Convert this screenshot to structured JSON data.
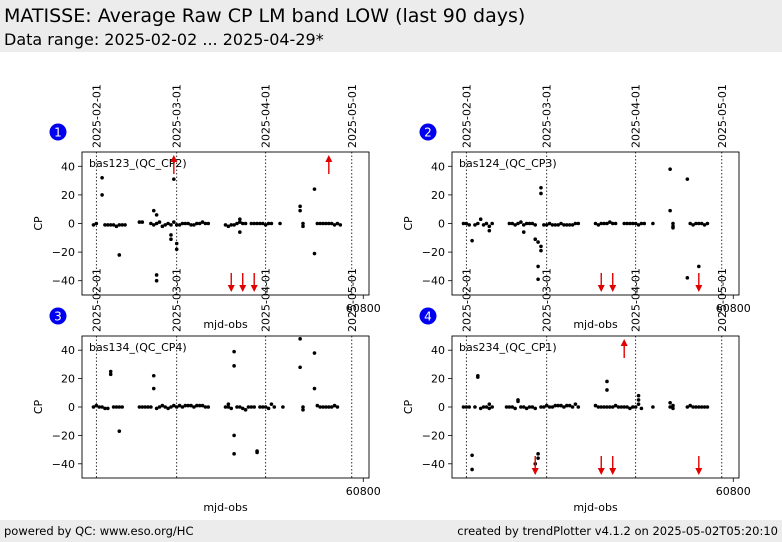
{
  "header": {
    "title": "MATISSE: Average Raw CP LM band LOW (last 90 days)",
    "subtitle": "Data range: 2025-02-02 ... 2025-04-29*"
  },
  "footer": {
    "left": "powered by QC: www.eso.org/HC",
    "right": "created by trendPlotter v4.1.2 on 2025-05-02T05:20:10"
  },
  "colors": {
    "points": "#000000",
    "outlier_arrows": "#e00000",
    "badge": "#0000ee",
    "header_bg": "#ececec"
  },
  "chart_data": [
    {
      "type": "scatter",
      "panel": "1",
      "label": "bas123_(QC_CP2)",
      "xlabel": "mjd-obs",
      "ylabel": "CP",
      "xlim": [
        60702,
        60802
      ],
      "ylim": [
        -50,
        50
      ],
      "xticks": [
        60800
      ],
      "yticks": [
        -40,
        -20,
        0,
        20,
        40
      ],
      "date_lines": [
        {
          "x": 60707,
          "label": "2025-02-01"
        },
        {
          "x": 60735,
          "label": "2025-03-01"
        },
        {
          "x": 60766,
          "label": "2025-04-01"
        },
        {
          "x": 60796,
          "label": "2025-05-01"
        }
      ],
      "points": [
        [
          60706,
          -1
        ],
        [
          60707,
          0
        ],
        [
          60709,
          32
        ],
        [
          60709,
          20
        ],
        [
          60710,
          -1
        ],
        [
          60711,
          -1
        ],
        [
          60712,
          -1
        ],
        [
          60713,
          -1
        ],
        [
          60714,
          -2
        ],
        [
          60715,
          -1
        ],
        [
          60715,
          -22
        ],
        [
          60716,
          -1
        ],
        [
          60717,
          -1
        ],
        [
          60722,
          1
        ],
        [
          60723,
          1
        ],
        [
          60726,
          0
        ],
        [
          60727,
          -1
        ],
        [
          60727,
          9
        ],
        [
          60728,
          6
        ],
        [
          60728,
          0
        ],
        [
          60728,
          -36
        ],
        [
          60728,
          -40
        ],
        [
          60729,
          1
        ],
        [
          60730,
          -2
        ],
        [
          60731,
          -1
        ],
        [
          60732,
          0
        ],
        [
          60733,
          -1
        ],
        [
          60733,
          -8
        ],
        [
          60733,
          -11
        ],
        [
          60734,
          1
        ],
        [
          60734,
          44
        ],
        [
          60734,
          31
        ],
        [
          60735,
          -1
        ],
        [
          60735,
          -14
        ],
        [
          60735,
          -18
        ],
        [
          60736,
          -1
        ],
        [
          60737,
          0
        ],
        [
          60738,
          0
        ],
        [
          60739,
          0
        ],
        [
          60740,
          -1
        ],
        [
          60741,
          -1
        ],
        [
          60742,
          0
        ],
        [
          60743,
          0
        ],
        [
          60744,
          1
        ],
        [
          60745,
          0
        ],
        [
          60746,
          0
        ],
        [
          60752,
          -1
        ],
        [
          60753,
          -2
        ],
        [
          60754,
          -1
        ],
        [
          60755,
          -1
        ],
        [
          60756,
          0
        ],
        [
          60757,
          1
        ],
        [
          60757,
          3
        ],
        [
          60757,
          -6
        ],
        [
          60758,
          0
        ],
        [
          60759,
          0
        ],
        [
          60761,
          0
        ],
        [
          60762,
          0
        ],
        [
          60763,
          0
        ],
        [
          60764,
          0
        ],
        [
          60765,
          0
        ],
        [
          60766,
          -1
        ],
        [
          60767,
          0
        ],
        [
          60768,
          0
        ],
        [
          60771,
          0
        ],
        [
          60778,
          9
        ],
        [
          60778,
          12
        ],
        [
          60779,
          0
        ],
        [
          60779,
          -2
        ],
        [
          60783,
          -21
        ],
        [
          60783,
          24
        ],
        [
          60784,
          0
        ],
        [
          60785,
          0
        ],
        [
          60786,
          0
        ],
        [
          60787,
          0
        ],
        [
          60788,
          0
        ],
        [
          60789,
          0
        ],
        [
          60790,
          -1
        ],
        [
          60791,
          0
        ],
        [
          60792,
          -1
        ]
      ],
      "outliers": [
        {
          "x": 60734,
          "dir": "up"
        },
        {
          "x": 60788,
          "dir": "up"
        },
        {
          "x": 60754,
          "dir": "down"
        },
        {
          "x": 60758,
          "dir": "down"
        },
        {
          "x": 60762,
          "dir": "down"
        }
      ]
    },
    {
      "type": "scatter",
      "panel": "2",
      "label": "bas124_(QC_CP3)",
      "xlabel": "mjd-obs",
      "ylabel": "CP",
      "xlim": [
        60702,
        60802
      ],
      "ylim": [
        -50,
        50
      ],
      "xticks": [
        60800
      ],
      "yticks": [
        -40,
        -20,
        0,
        20,
        40
      ],
      "date_lines": [
        {
          "x": 60707,
          "label": "2025-02-01"
        },
        {
          "x": 60735,
          "label": "2025-03-01"
        },
        {
          "x": 60766,
          "label": "2025-04-01"
        },
        {
          "x": 60796,
          "label": "2025-05-01"
        }
      ],
      "points": [
        [
          60706,
          0
        ],
        [
          60707,
          0
        ],
        [
          60708,
          -1
        ],
        [
          60709,
          -12
        ],
        [
          60710,
          -1
        ],
        [
          60711,
          0
        ],
        [
          60712,
          3
        ],
        [
          60713,
          -1
        ],
        [
          60714,
          0
        ],
        [
          60715,
          -2
        ],
        [
          60715,
          -5
        ],
        [
          60716,
          0
        ],
        [
          60722,
          0
        ],
        [
          60723,
          0
        ],
        [
          60724,
          -1
        ],
        [
          60725,
          0
        ],
        [
          60726,
          1
        ],
        [
          60727,
          -1
        ],
        [
          60727,
          -6
        ],
        [
          60728,
          0
        ],
        [
          60729,
          0
        ],
        [
          60730,
          0
        ],
        [
          60731,
          -1
        ],
        [
          60731,
          -11
        ],
        [
          60732,
          -13
        ],
        [
          60732,
          -30
        ],
        [
          60732,
          -39
        ],
        [
          60733,
          25
        ],
        [
          60733,
          21
        ],
        [
          60733,
          -16
        ],
        [
          60733,
          -19
        ],
        [
          60734,
          -1
        ],
        [
          60735,
          -1
        ],
        [
          60736,
          0
        ],
        [
          60737,
          -1
        ],
        [
          60738,
          -1
        ],
        [
          60739,
          -1
        ],
        [
          60740,
          0
        ],
        [
          60741,
          -1
        ],
        [
          60742,
          -1
        ],
        [
          60743,
          -1
        ],
        [
          60744,
          -1
        ],
        [
          60745,
          0
        ],
        [
          60746,
          0
        ],
        [
          60752,
          0
        ],
        [
          60753,
          -1
        ],
        [
          60754,
          0
        ],
        [
          60755,
          0
        ],
        [
          60756,
          0
        ],
        [
          60757,
          1
        ],
        [
          60758,
          0
        ],
        [
          60759,
          0
        ],
        [
          60762,
          0
        ],
        [
          60763,
          0
        ],
        [
          60764,
          0
        ],
        [
          60765,
          0
        ],
        [
          60766,
          0
        ],
        [
          60767,
          -1
        ],
        [
          60768,
          0
        ],
        [
          60769,
          0
        ],
        [
          60772,
          0
        ],
        [
          60778,
          38
        ],
        [
          60778,
          9
        ],
        [
          60779,
          0
        ],
        [
          60779,
          -2
        ],
        [
          60779,
          -3
        ],
        [
          60784,
          31
        ],
        [
          60784,
          -38
        ],
        [
          60785,
          0
        ],
        [
          60786,
          -1
        ],
        [
          60787,
          0
        ],
        [
          60788,
          -30
        ],
        [
          60788,
          0
        ],
        [
          60789,
          0
        ],
        [
          60790,
          -1
        ],
        [
          60791,
          0
        ]
      ],
      "outliers": [
        {
          "x": 60754,
          "dir": "down"
        },
        {
          "x": 60758,
          "dir": "down"
        },
        {
          "x": 60788,
          "dir": "down"
        }
      ]
    },
    {
      "type": "scatter",
      "panel": "3",
      "label": "bas134_(QC_CP4)",
      "xlabel": "mjd-obs",
      "ylabel": "CP",
      "xlim": [
        60702,
        60802
      ],
      "ylim": [
        -50,
        50
      ],
      "xticks": [
        60800
      ],
      "yticks": [
        -40,
        -20,
        0,
        20,
        40
      ],
      "date_lines": [
        {
          "x": 60707,
          "label": "2025-02-01"
        },
        {
          "x": 60735,
          "label": "2025-03-01"
        },
        {
          "x": 60766,
          "label": "2025-04-01"
        },
        {
          "x": 60796,
          "label": "2025-05-01"
        }
      ],
      "points": [
        [
          60706,
          0
        ],
        [
          60707,
          1
        ],
        [
          60708,
          0
        ],
        [
          60709,
          0
        ],
        [
          60710,
          -1
        ],
        [
          60711,
          -1
        ],
        [
          60712,
          25
        ],
        [
          60712,
          23
        ],
        [
          60713,
          0
        ],
        [
          60714,
          0
        ],
        [
          60715,
          0
        ],
        [
          60715,
          -17
        ],
        [
          60716,
          0
        ],
        [
          60722,
          0
        ],
        [
          60723,
          0
        ],
        [
          60724,
          0
        ],
        [
          60725,
          0
        ],
        [
          60726,
          0
        ],
        [
          60727,
          13
        ],
        [
          60727,
          22
        ],
        [
          60728,
          -1
        ],
        [
          60729,
          0
        ],
        [
          60730,
          1
        ],
        [
          60731,
          0
        ],
        [
          60732,
          -1
        ],
        [
          60733,
          0
        ],
        [
          60734,
          1
        ],
        [
          60735,
          0
        ],
        [
          60736,
          1
        ],
        [
          60737,
          0
        ],
        [
          60738,
          1
        ],
        [
          60739,
          1
        ],
        [
          60740,
          1
        ],
        [
          60741,
          0
        ],
        [
          60742,
          1
        ],
        [
          60743,
          1
        ],
        [
          60744,
          1
        ],
        [
          60745,
          0
        ],
        [
          60746,
          0
        ],
        [
          60752,
          0
        ],
        [
          60753,
          2
        ],
        [
          60753,
          0
        ],
        [
          60754,
          -1
        ],
        [
          60755,
          -20
        ],
        [
          60755,
          -33
        ],
        [
          60755,
          39
        ],
        [
          60755,
          29
        ],
        [
          60756,
          0
        ],
        [
          60757,
          0
        ],
        [
          60758,
          -1
        ],
        [
          60759,
          -2
        ],
        [
          60760,
          0
        ],
        [
          60761,
          0
        ],
        [
          60762,
          0
        ],
        [
          60763,
          -31
        ],
        [
          60763,
          -32
        ],
        [
          60764,
          0
        ],
        [
          60765,
          0
        ],
        [
          60766,
          0
        ],
        [
          60767,
          -1
        ],
        [
          60768,
          2
        ],
        [
          60769,
          0
        ],
        [
          60772,
          0
        ],
        [
          60778,
          48
        ],
        [
          60778,
          28
        ],
        [
          60779,
          0
        ],
        [
          60779,
          -2
        ],
        [
          60783,
          38
        ],
        [
          60783,
          13
        ],
        [
          60784,
          1
        ],
        [
          60785,
          0
        ],
        [
          60786,
          0
        ],
        [
          60787,
          0
        ],
        [
          60788,
          0
        ],
        [
          60789,
          0
        ],
        [
          60790,
          1
        ],
        [
          60791,
          0
        ]
      ],
      "outliers": []
    },
    {
      "type": "scatter",
      "panel": "4",
      "label": "bas234_(QC_CP1)",
      "xlabel": "mjd-obs",
      "ylabel": "CP",
      "xlim": [
        60702,
        60802
      ],
      "ylim": [
        -50,
        50
      ],
      "xticks": [
        60800
      ],
      "yticks": [
        -40,
        -20,
        0,
        20,
        40
      ],
      "date_lines": [
        {
          "x": 60707,
          "label": "2025-02-01"
        },
        {
          "x": 60735,
          "label": "2025-03-01"
        },
        {
          "x": 60766,
          "label": "2025-04-01"
        },
        {
          "x": 60796,
          "label": "2025-05-01"
        }
      ],
      "points": [
        [
          60706,
          0
        ],
        [
          60707,
          0
        ],
        [
          60708,
          0
        ],
        [
          60709,
          -34
        ],
        [
          60709,
          -44
        ],
        [
          60710,
          0
        ],
        [
          60711,
          22
        ],
        [
          60711,
          21
        ],
        [
          60712,
          -1
        ],
        [
          60713,
          0
        ],
        [
          60714,
          0
        ],
        [
          60715,
          -1
        ],
        [
          60715,
          2
        ],
        [
          60716,
          0
        ],
        [
          60721,
          0
        ],
        [
          60722,
          0
        ],
        [
          60723,
          0
        ],
        [
          60724,
          -1
        ],
        [
          60725,
          5
        ],
        [
          60725,
          4
        ],
        [
          60726,
          0
        ],
        [
          60727,
          0
        ],
        [
          60728,
          -1
        ],
        [
          60729,
          0
        ],
        [
          60730,
          0
        ],
        [
          60731,
          -1
        ],
        [
          60731,
          -40
        ],
        [
          60732,
          -33
        ],
        [
          60732,
          -36
        ],
        [
          60733,
          0
        ],
        [
          60734,
          0
        ],
        [
          60735,
          1
        ],
        [
          60736,
          0
        ],
        [
          60737,
          0
        ],
        [
          60738,
          1
        ],
        [
          60739,
          1
        ],
        [
          60740,
          1
        ],
        [
          60741,
          0
        ],
        [
          60742,
          1
        ],
        [
          60743,
          1
        ],
        [
          60744,
          0
        ],
        [
          60745,
          2
        ],
        [
          60746,
          0
        ],
        [
          60752,
          1
        ],
        [
          60753,
          0
        ],
        [
          60754,
          0
        ],
        [
          60755,
          0
        ],
        [
          60756,
          18
        ],
        [
          60756,
          12
        ],
        [
          60756,
          0
        ],
        [
          60757,
          0
        ],
        [
          60758,
          0
        ],
        [
          60759,
          1
        ],
        [
          60760,
          0
        ],
        [
          60761,
          0
        ],
        [
          60762,
          0
        ],
        [
          60763,
          0
        ],
        [
          60764,
          -1
        ],
        [
          60765,
          0
        ],
        [
          60766,
          0
        ],
        [
          60767,
          8
        ],
        [
          60767,
          5
        ],
        [
          60767,
          2
        ],
        [
          60768,
          -1
        ],
        [
          60772,
          0
        ],
        [
          60778,
          3
        ],
        [
          60778,
          0
        ],
        [
          60779,
          1
        ],
        [
          60779,
          -1
        ],
        [
          60784,
          0
        ],
        [
          60785,
          1
        ],
        [
          60786,
          0
        ],
        [
          60787,
          0
        ],
        [
          60788,
          0
        ],
        [
          60789,
          0
        ],
        [
          60790,
          0
        ],
        [
          60791,
          0
        ]
      ],
      "outliers": [
        {
          "x": 60762,
          "dir": "up"
        },
        {
          "x": 60731,
          "dir": "down"
        },
        {
          "x": 60754,
          "dir": "down"
        },
        {
          "x": 60758,
          "dir": "down"
        },
        {
          "x": 60788,
          "dir": "down"
        }
      ]
    }
  ]
}
